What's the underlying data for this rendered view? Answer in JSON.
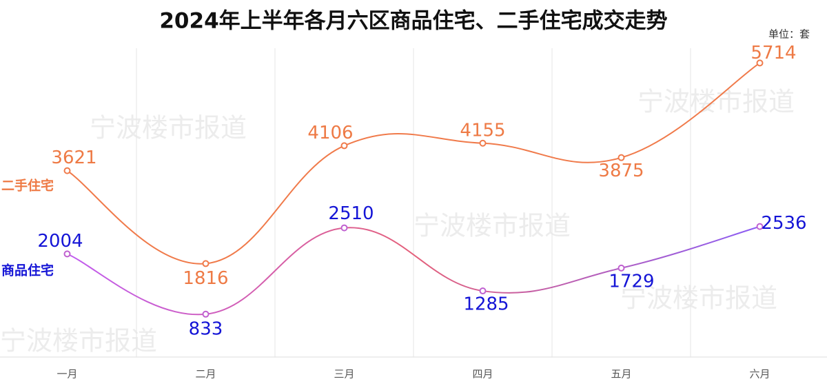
{
  "chart_data": {
    "type": "line",
    "title": "2024年上半年各月六区商品住宅、二手住宅成交走势",
    "unit": "单位：套",
    "watermark": "宁波楼市报道",
    "categories": [
      "一月",
      "二月",
      "三月",
      "四月",
      "五月",
      "六月"
    ],
    "series": [
      {
        "name": "二手住宅",
        "color": "#f07a4a",
        "label_color": "#ee7a45",
        "values": [
          3621,
          1816,
          4106,
          4155,
          3875,
          5714
        ]
      },
      {
        "name": "商品住宅",
        "color": "#a35cf0",
        "label_color": "#1414d6",
        "values": [
          2004,
          833,
          2510,
          1285,
          1729,
          2536
        ]
      }
    ],
    "ylim": [
      0,
      6000
    ],
    "grid": true
  }
}
